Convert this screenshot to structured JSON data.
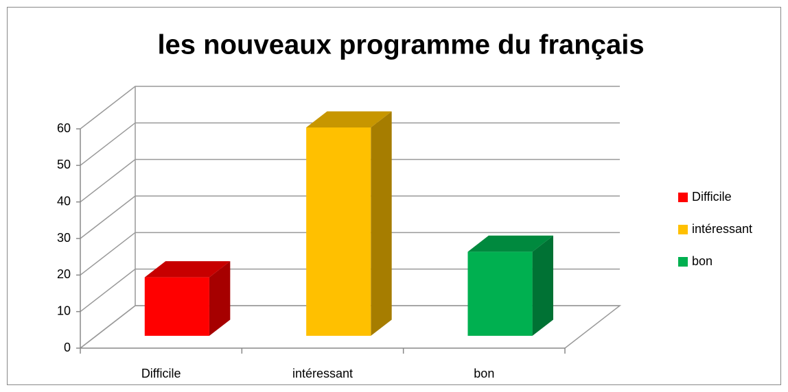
{
  "chart_data": {
    "type": "bar3d",
    "title": "les nouveaux programme du français",
    "categories": [
      "Difficile",
      "intéressant",
      "bon"
    ],
    "values": [
      16,
      57,
      23
    ],
    "colors": [
      "#ff0000",
      "#ffc000",
      "#00b050"
    ],
    "ylim": [
      0,
      60
    ],
    "yticks": [
      0,
      10,
      20,
      30,
      40,
      50,
      60
    ],
    "grid": true,
    "legend": "right"
  }
}
